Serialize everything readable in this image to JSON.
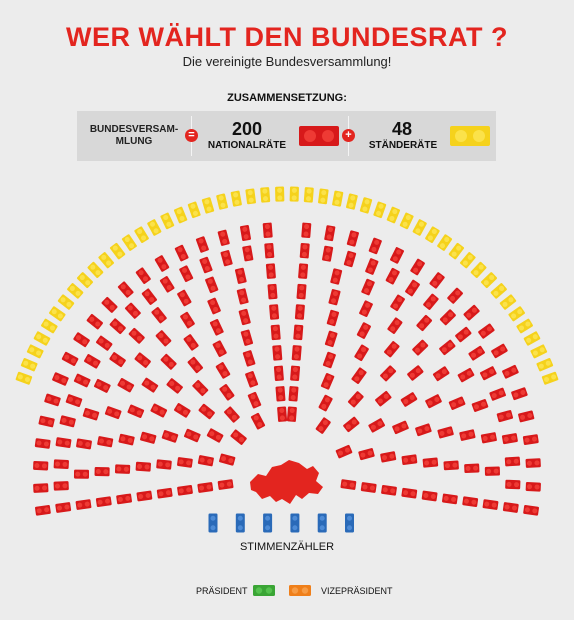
{
  "header": {
    "title": "WER WÄHLT DEN BUNDESRAT ?",
    "subtitle": "Die vereinigte Bundesversammlung!"
  },
  "composition": {
    "heading": "ZUSAMMENSETZUNG:",
    "assembly_label_line1": "BUNDESVERSAM-",
    "assembly_label_line2": "MLUNG",
    "equals_sign": "=",
    "plus_sign": "+",
    "national_count": "200",
    "national_label": "NATIONALRÄTE",
    "states_count": "48",
    "states_label": "STÄNDERÄTE"
  },
  "chamber": {
    "national_seats": 200,
    "states_seats": 48,
    "tellers": 6,
    "teller_label": "STIMMENZÄHLER"
  },
  "legend": {
    "president_label": "PRÄSIDENT",
    "vice_president_label": "VIZEPRÄSIDENT"
  },
  "colors": {
    "title_red": "#e3251f",
    "national_red": "#d7191a",
    "states_yellow": "#f5d21c",
    "teller_blue": "#2a6ab8",
    "president_green": "#3aa535",
    "vice_president_orange": "#ef7f1a",
    "switzerland_map": "#e3251f"
  }
}
